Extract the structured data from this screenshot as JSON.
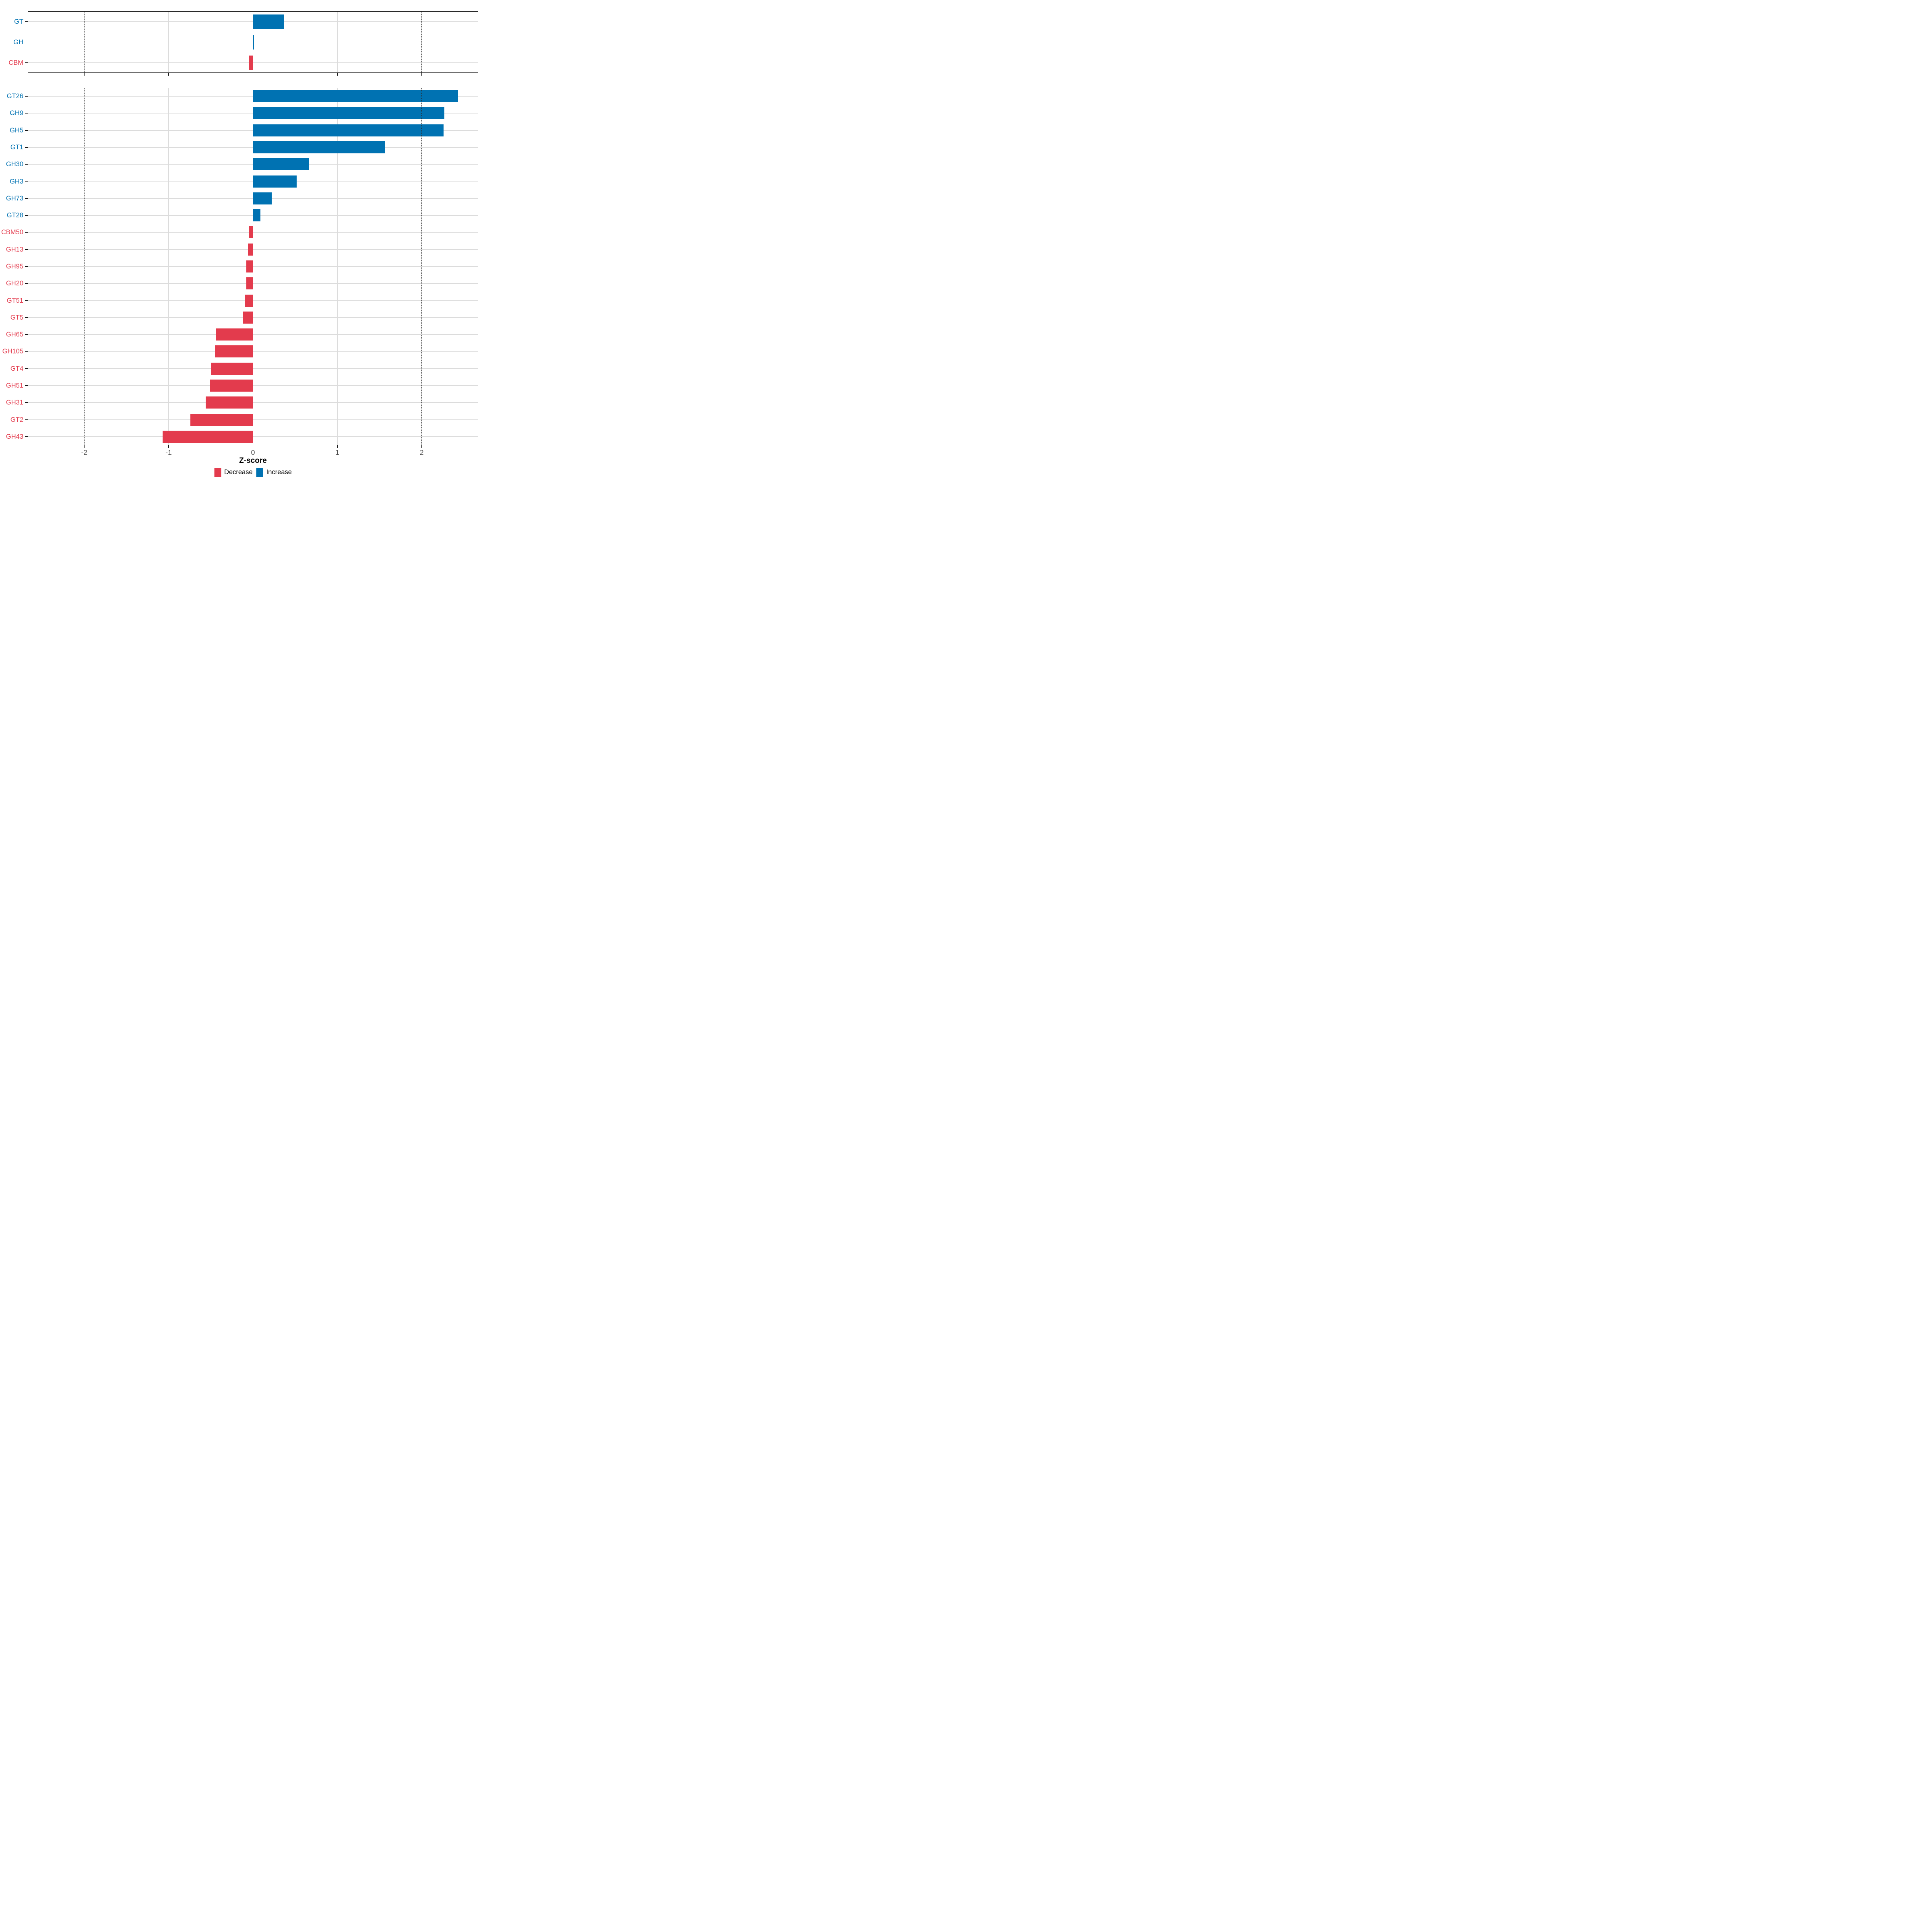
{
  "figure": {
    "background": "#ffffff"
  },
  "chart_data": [
    {
      "type": "bar",
      "orientation": "horizontal",
      "panel": "top-cazyme-classes",
      "categories": [
        "GT",
        "GH",
        "CBM"
      ],
      "values": [
        0.37,
        0.01,
        -0.05
      ],
      "xlim": [
        -2.67,
        2.67
      ],
      "xticks": [
        -2,
        -1,
        0,
        1,
        2
      ],
      "dotted_vlines": [
        -2,
        2
      ],
      "grid": true,
      "title": "",
      "xlabel": "",
      "ylabel": ""
    },
    {
      "type": "bar",
      "orientation": "horizontal",
      "panel": "bottom-cazyme-families",
      "categories": [
        "GT26",
        "GH9",
        "GH5",
        "GT1",
        "GH30",
        "GH3",
        "GH73",
        "GT28",
        "CBM50",
        "GH13",
        "GH95",
        "GH20",
        "GT51",
        "GT5",
        "GH65",
        "GH105",
        "GT4",
        "GH51",
        "GH31",
        "GT2",
        "GH43"
      ],
      "values": [
        2.43,
        2.27,
        2.26,
        1.57,
        0.66,
        0.52,
        0.22,
        0.09,
        -0.05,
        -0.06,
        -0.08,
        -0.08,
        -0.1,
        -0.12,
        -0.44,
        -0.45,
        -0.5,
        -0.51,
        -0.56,
        -0.74,
        -1.07
      ],
      "xlim": [
        -2.67,
        2.67
      ],
      "xticks": [
        -2,
        -1,
        0,
        1,
        2
      ],
      "dotted_vlines": [
        -2,
        2
      ],
      "grid": true,
      "title": "",
      "xlabel": "Z-score",
      "ylabel": ""
    }
  ],
  "axis": {
    "xlabel": "Z-score",
    "xtick_labels": [
      "-2",
      "-1",
      "0",
      "1",
      "2"
    ]
  },
  "legend": {
    "position": "bottom",
    "items": [
      {
        "label": "Decrease",
        "color": "#e33b4d"
      },
      {
        "label": "Increase",
        "color": "#0072b2"
      }
    ]
  },
  "colors": {
    "increase": "#0072b2",
    "decrease": "#e33b4d",
    "grid": "#dcdcdc",
    "frame": "#1a1a1a",
    "tick": "#1a1a1a",
    "tick_label": "#4d4d4d",
    "dotted_line": "#2b2b2b",
    "background": "#ffffff"
  }
}
